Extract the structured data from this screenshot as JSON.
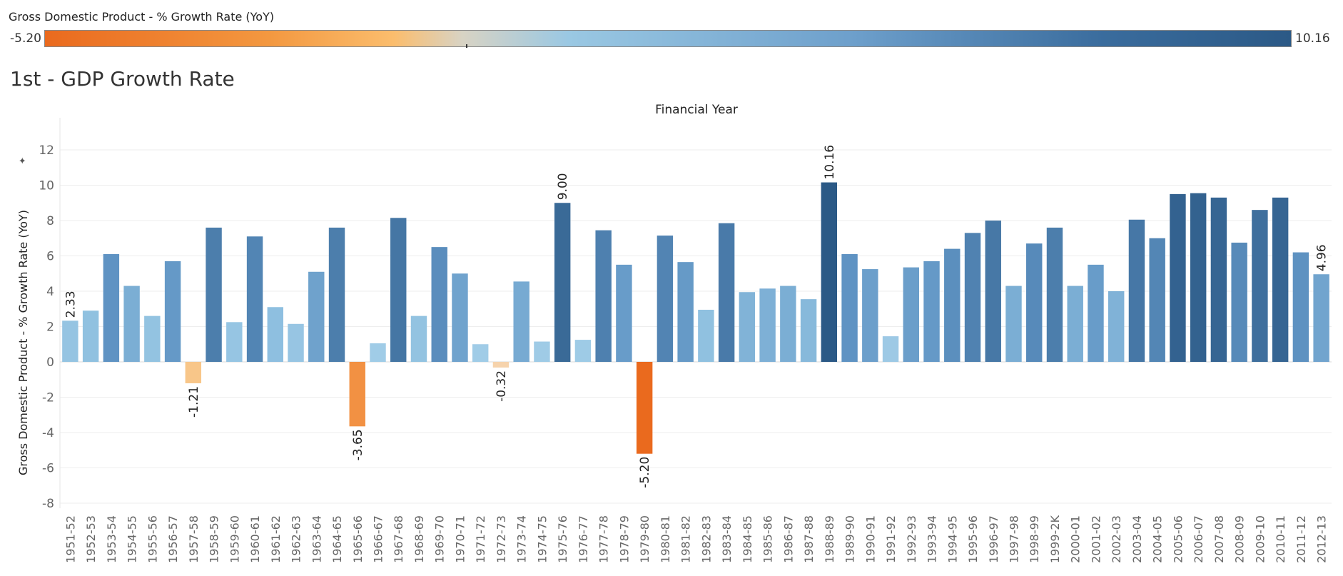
{
  "legend": {
    "title": "Gross Domestic Product - % Growth Rate (YoY)",
    "min_label": "-5.20",
    "max_label": "10.16",
    "colors": {
      "negative": "#ea6a1e",
      "neutral": "#d8d3c4",
      "positive": "#2b5986"
    }
  },
  "chart_title": "1st - GDP Growth Rate",
  "chart_data": {
    "type": "bar",
    "title": "1st - GDP Growth Rate",
    "xlabel": "Financial Year",
    "ylabel": "Gross Domestic Product - % Growth Rate (YoY)",
    "ylim": [
      -8,
      12
    ],
    "yticks": [
      "12",
      "10",
      "8",
      "6",
      "4",
      "2",
      "0",
      "-2",
      "-4",
      "-6",
      "-8"
    ],
    "grid": true,
    "categories": [
      "1951-52",
      "1952-53",
      "1953-54",
      "1954-55",
      "1955-56",
      "1956-57",
      "1957-58",
      "1958-59",
      "1959-60",
      "1960-61",
      "1961-62",
      "1962-63",
      "1963-64",
      "1964-65",
      "1965-66",
      "1966-67",
      "1967-68",
      "1968-69",
      "1969-70",
      "1970-71",
      "1971-72",
      "1972-73",
      "1973-74",
      "1974-75",
      "1975-76",
      "1976-77",
      "1977-78",
      "1978-79",
      "1979-80",
      "1980-81",
      "1981-82",
      "1982-83",
      "1983-84",
      "1984-85",
      "1985-86",
      "1986-87",
      "1987-88",
      "1988-89",
      "1989-90",
      "1990-91",
      "1991-92",
      "1992-93",
      "1993-94",
      "1994-95",
      "1995-96",
      "1996-97",
      "1997-98",
      "1998-99",
      "1999-2K",
      "2000-01",
      "2001-02",
      "2002-03",
      "2003-04",
      "2004-05",
      "2005-06",
      "2006-07",
      "2007-08",
      "2008-09",
      "2009-10",
      "2010-11",
      "2011-12",
      "2012-13"
    ],
    "values": [
      2.33,
      2.9,
      6.1,
      4.3,
      2.6,
      5.7,
      -1.21,
      7.6,
      2.25,
      7.1,
      3.1,
      2.15,
      5.1,
      7.6,
      -3.65,
      1.05,
      8.15,
      2.6,
      6.5,
      5.0,
      1.0,
      -0.32,
      4.55,
      1.15,
      9.0,
      1.25,
      7.45,
      5.5,
      -5.2,
      7.15,
      5.65,
      2.95,
      7.85,
      3.95,
      4.15,
      4.3,
      3.55,
      10.16,
      6.1,
      5.25,
      1.45,
      5.35,
      5.7,
      6.4,
      7.3,
      8.0,
      4.3,
      6.7,
      7.6,
      4.3,
      5.5,
      4.0,
      8.05,
      7.0,
      9.5,
      9.55,
      9.3,
      6.75,
      8.6,
      9.3,
      6.2,
      4.96
    ],
    "data_labels": [
      {
        "category": "1951-52",
        "label": "2.33"
      },
      {
        "category": "1957-58",
        "label": "-1.21"
      },
      {
        "category": "1965-66",
        "label": "-3.65"
      },
      {
        "category": "1972-73",
        "label": "-0.32"
      },
      {
        "category": "1975-76",
        "label": "9.00"
      },
      {
        "category": "1979-80",
        "label": "-5.20"
      },
      {
        "category": "1988-89",
        "label": "10.16"
      },
      {
        "category": "2012-13",
        "label": "4.96"
      }
    ]
  }
}
